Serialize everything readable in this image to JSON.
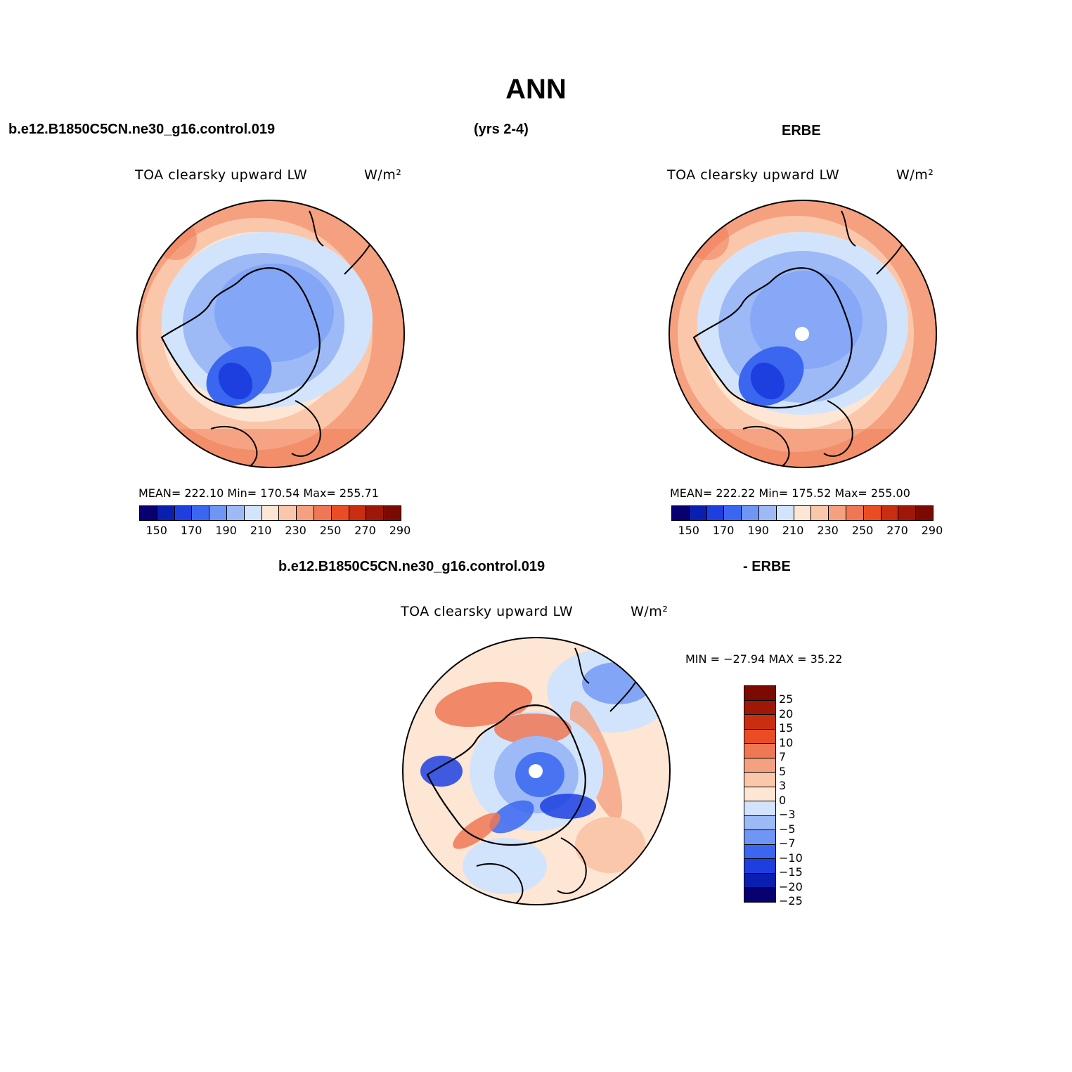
{
  "figure": {
    "title": "ANN",
    "case_name": "b.e12.B1850C5CN.ne30_g16.control.019",
    "years": "(yrs 2-4)",
    "obs_name": "ERBE"
  },
  "panels": {
    "model": {
      "title": "TOA clearsky upward LW",
      "units": "W/m²",
      "stats_text": "MEAN= 222.10   Min= 170.54   Max= 255.71",
      "mean": 222.1,
      "min": 170.54,
      "max": 255.71
    },
    "obs": {
      "title": "TOA clearsky upward LW",
      "units": "W/m²",
      "stats_text": "MEAN= 222.22   Min= 175.52   Max= 255.00",
      "mean": 222.22,
      "min": 175.52,
      "max": 255.0
    },
    "diff": {
      "label_left": "b.e12.B1850C5CN.ne30_g16.control.019",
      "label_right": "- ERBE",
      "title": "TOA clearsky upward LW",
      "units": "W/m²",
      "stats_text": "MIN = −27.94 MAX =   35.22",
      "min": -27.94,
      "max": 35.22
    }
  },
  "colorbar_abs": {
    "colors": [
      "#08006e",
      "#0a1fb0",
      "#1d3fe0",
      "#3a66f0",
      "#6f95f5",
      "#9dbaf7",
      "#d2e4fb",
      "#fde6d4",
      "#fbc7ab",
      "#f5a17f",
      "#ef7753",
      "#ea4d24",
      "#c92e10",
      "#a01707",
      "#7b0a02"
    ],
    "tick_labels": [
      "150",
      "170",
      "190",
      "210",
      "230",
      "250",
      "270",
      "290"
    ]
  },
  "colorbar_diff": {
    "colors": [
      "#7b0a02",
      "#a01707",
      "#c92e10",
      "#ea4d24",
      "#ef7753",
      "#f5a17f",
      "#fbc7ab",
      "#fde6d4",
      "#d2e4fb",
      "#9dbaf7",
      "#6f95f5",
      "#3a66f0",
      "#1d3fe0",
      "#0a1fb0",
      "#08006e"
    ],
    "tick_labels": [
      "25",
      "20",
      "15",
      "10",
      "7",
      "5",
      "3",
      "0",
      "−3",
      "−5",
      "−7",
      "−10",
      "−15",
      "−20",
      "−25"
    ]
  }
}
